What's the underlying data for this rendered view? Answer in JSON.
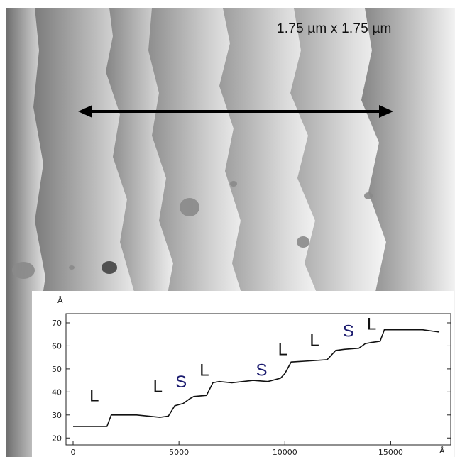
{
  "figure": {
    "scale_label": "1.75  µm x 1.75  µm"
  },
  "chart_data": {
    "type": "line",
    "y_unit": "Å",
    "x_unit": "Å",
    "xlim": [
      0,
      17500
    ],
    "ylim": [
      17,
      74
    ],
    "x_ticks": [
      0,
      5000,
      10000,
      15000
    ],
    "y_ticks": [
      20,
      30,
      40,
      50,
      60,
      70
    ],
    "x_tick_labels": [
      "0",
      "5000",
      "10000",
      "15000"
    ],
    "y_tick_labels": [
      "20",
      "30",
      "40",
      "50",
      "60",
      "70"
    ],
    "grid": false,
    "series": [
      {
        "x": [
          0,
          1600,
          1800,
          3000,
          4100,
          4500,
          4800,
          5200,
          5500,
          5700,
          6300,
          6600,
          6900,
          7500,
          8500,
          9200,
          9800,
          10000,
          10300,
          11200,
          12000,
          12400,
          12800,
          13500,
          13800,
          14100,
          14500,
          14700,
          15200,
          16500,
          17300
        ],
        "y": [
          25,
          25,
          30,
          30,
          29,
          29.5,
          34,
          35,
          37,
          38,
          38.5,
          44,
          44.5,
          44,
          45,
          44.5,
          46,
          48,
          53,
          53.5,
          54,
          58,
          58.5,
          59,
          61,
          61.5,
          62,
          67,
          67,
          67,
          66
        ]
      }
    ],
    "annotations": [
      {
        "text": "L",
        "x": 1000,
        "y": 36
      },
      {
        "text": "L",
        "x": 4000,
        "y": 40
      },
      {
        "text": "S",
        "x": 5100,
        "y": 42
      },
      {
        "text": "L",
        "x": 6200,
        "y": 47
      },
      {
        "text": "S",
        "x": 8900,
        "y": 47
      },
      {
        "text": "L",
        "x": 9900,
        "y": 56
      },
      {
        "text": "L",
        "x": 11400,
        "y": 60
      },
      {
        "text": "S",
        "x": 13000,
        "y": 64
      },
      {
        "text": "L",
        "x": 14100,
        "y": 67
      }
    ]
  }
}
